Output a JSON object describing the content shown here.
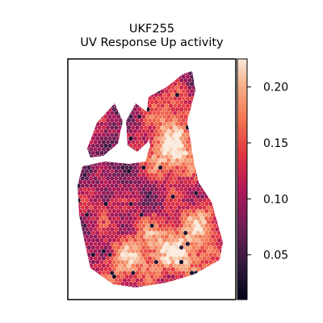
{
  "title": {
    "line1": "UKF255",
    "line2": "UV Response Up activity"
  },
  "chart_data": {
    "type": "heatmap",
    "title": "UKF255\nUV Response Up activity",
    "colormap": "rocket",
    "colorbar": {
      "range": [
        0.01,
        0.225
      ],
      "ticks": [
        0.05,
        0.1,
        0.15,
        0.2
      ],
      "tick_labels": [
        "0.05",
        "0.10",
        "0.15",
        "0.20"
      ]
    },
    "axes": {
      "xticks": "none",
      "yticks": "none"
    },
    "grid": false,
    "hotspots": [
      {
        "region": "upper-right lobe",
        "value": 0.22
      },
      {
        "region": "lower-left",
        "value": 0.17
      },
      {
        "region": "lower-right",
        "value": 0.18
      }
    ],
    "value_range_observed": [
      0.01,
      0.22
    ]
  }
}
